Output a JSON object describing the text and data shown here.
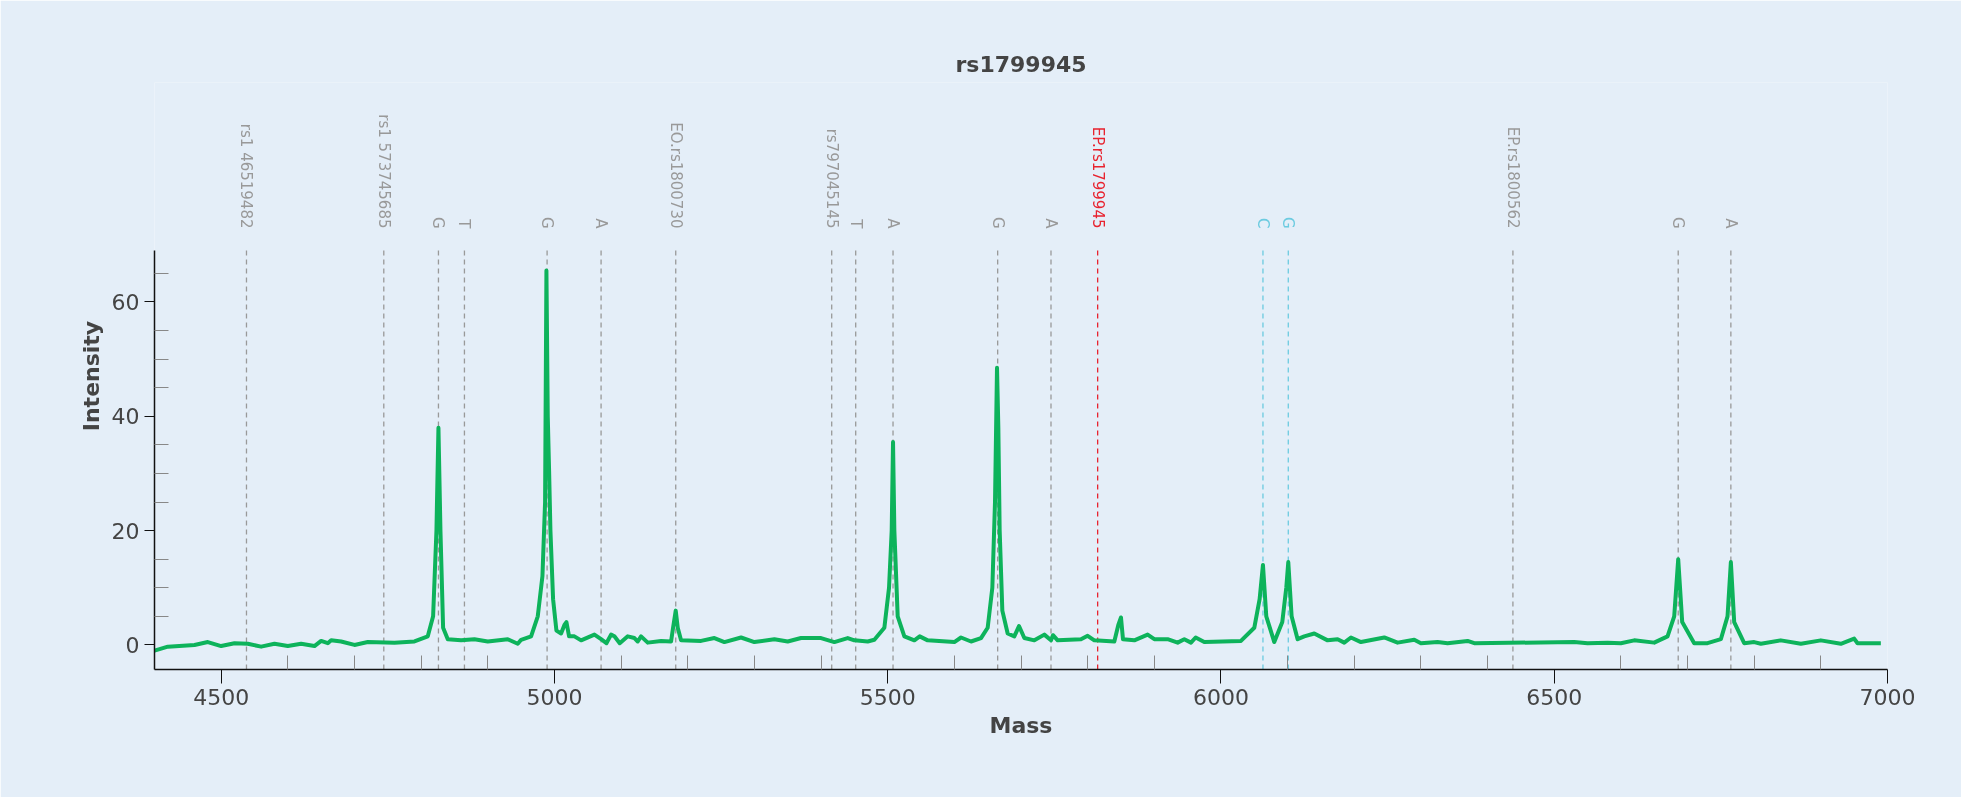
{
  "chart_data": {
    "type": "line",
    "title": "rs1799945",
    "xlabel": "Mass",
    "ylabel": "Intensity",
    "xlim": [
      4400,
      7000
    ],
    "ylim": [
      -4.3,
      69
    ],
    "xticks": [
      4500,
      5000,
      5500,
      6000,
      6500,
      7000,
      {
        "value": 4600,
        "label": null
      },
      {
        "value": 4700,
        "label": null
      },
      {
        "value": 4800,
        "label": null
      },
      {
        "value": 4900,
        "label": null
      },
      {
        "value": 5100,
        "label": null
      },
      {
        "value": 5200,
        "label": null
      },
      {
        "value": 5300,
        "label": null
      },
      {
        "value": 5400,
        "label": null
      },
      {
        "value": 5600,
        "label": null
      },
      {
        "value": 5700,
        "label": null
      },
      {
        "value": 5800,
        "label": null
      },
      {
        "value": 5900,
        "label": null
      },
      {
        "value": 6100,
        "label": null
      },
      {
        "value": 6200,
        "label": null
      },
      {
        "value": 6300,
        "label": null
      },
      {
        "value": 6400,
        "label": null
      },
      {
        "value": 6600,
        "label": null
      },
      {
        "value": 6700,
        "label": null
      },
      {
        "value": 6800,
        "label": null
      },
      {
        "value": 6900,
        "label": null
      }
    ],
    "yticks": [
      0,
      20,
      40,
      60,
      {
        "value": 5,
        "label": null
      },
      {
        "value": 10,
        "label": null
      },
      {
        "value": 15,
        "label": null
      },
      {
        "value": 25,
        "label": null
      },
      {
        "value": 30,
        "label": null
      },
      {
        "value": 35,
        "label": null
      },
      {
        "value": 45,
        "label": null
      },
      {
        "value": 50,
        "label": null
      },
      {
        "value": 55,
        "label": null
      },
      {
        "value": 65,
        "label": null
      }
    ],
    "grid": false,
    "marker": "none",
    "line_style": "solid",
    "series": [
      {
        "color": "#0db35b",
        "x": [
          4400,
          4420,
          4460,
          4480,
          4500,
          4520,
          4540,
          4560,
          4580,
          4600,
          4620,
          4640,
          4650,
          4660,
          4665,
          4680,
          4700,
          4720,
          4760,
          4790,
          4810,
          4818,
          4823,
          4826,
          4829,
          4833,
          4840,
          4860,
          4880,
          4900,
          4930,
          4945,
          4950,
          4965,
          4975,
          4982,
          4986,
          4988,
          4990,
          4992,
          4994,
          4998,
          5003,
          5010,
          5015,
          5018,
          5022,
          5030,
          5040,
          5060,
          5070,
          5078,
          5085,
          5090,
          5098,
          5110,
          5120,
          5125,
          5130,
          5140,
          5160,
          5175,
          5178,
          5182,
          5185,
          5190,
          5220,
          5240,
          5255,
          5280,
          5300,
          5330,
          5350,
          5370,
          5400,
          5420,
          5440,
          5450,
          5470,
          5480,
          5495,
          5502,
          5506,
          5508,
          5510,
          5515,
          5525,
          5540,
          5548,
          5560,
          5600,
          5610,
          5625,
          5640,
          5650,
          5657,
          5661,
          5664,
          5666,
          5668,
          5672,
          5680,
          5690,
          5697,
          5705,
          5720,
          5735,
          5745,
          5748,
          5755,
          5790,
          5800,
          5810,
          5840,
          5846,
          5850,
          5853,
          5870,
          5890,
          5900,
          5920,
          5935,
          5945,
          5955,
          5962,
          5975,
          6030,
          6050,
          6058,
          6063,
          6068,
          6080,
          6092,
          6098,
          6101,
          6106,
          6115,
          6125,
          6140,
          6160,
          6175,
          6185,
          6195,
          6210,
          6245,
          6265,
          6290,
          6300,
          6325,
          6340,
          6370,
          6380,
          6530,
          6550,
          6580,
          6600,
          6620,
          6650,
          6670,
          6680,
          6686,
          6692,
          6710,
          6730,
          6750,
          6760,
          6765,
          6770,
          6785,
          6800,
          6810,
          6840,
          6870,
          6900,
          6930,
          6950,
          6955,
          6990
        ],
        "values": [
          -1,
          -0.3,
          0,
          0.5,
          -0.2,
          0.3,
          0.2,
          -0.3,
          0.2,
          -0.2,
          0.2,
          -0.2,
          0.7,
          0.3,
          0.8,
          0.6,
          0,
          0.5,
          0.4,
          0.6,
          1.5,
          5,
          20,
          38,
          20,
          3,
          1,
          0.8,
          1.0,
          0.6,
          1.0,
          0.2,
          0.9,
          1.5,
          5,
          12,
          25,
          65.5,
          40,
          30.5,
          20,
          8,
          2.5,
          2,
          3.5,
          4,
          1.5,
          1.5,
          0.8,
          1.8,
          1,
          0.3,
          1.8,
          1.5,
          0.3,
          1.5,
          1.2,
          0.6,
          1.5,
          0.4,
          0.7,
          0.6,
          3,
          6,
          3,
          0.8,
          0.7,
          1.2,
          0.5,
          1.3,
          0.5,
          1,
          0.6,
          1.2,
          1.2,
          0.5,
          1.2,
          0.8,
          0.6,
          0.9,
          3,
          10,
          20,
          35.5,
          20,
          5,
          1.5,
          0.8,
          1.5,
          0.8,
          0.5,
          1.3,
          0.6,
          1.2,
          3,
          10,
          25,
          48.5,
          38,
          20,
          6,
          2,
          1.5,
          3.3,
          1.2,
          0.8,
          1.8,
          0.8,
          1.7,
          0.8,
          1.0,
          1.6,
          0.8,
          0.6,
          3.5,
          4.8,
          1,
          0.8,
          1.8,
          1.0,
          1.0,
          0.4,
          1.0,
          0.4,
          1.3,
          0.5,
          0.7,
          3,
          8,
          14,
          5,
          0.5,
          4,
          10,
          14.5,
          5,
          1,
          1.5,
          2,
          0.8,
          1,
          0.4,
          1.3,
          0.5,
          1.3,
          0.4,
          0.9,
          0.3,
          0.5,
          0.3,
          0.7,
          0.3,
          0.5,
          0.3,
          0.4,
          0.3,
          0.8,
          0.4,
          1.5,
          5,
          15,
          4,
          0.3,
          0.3,
          1,
          5,
          14.5,
          4,
          0.3,
          0.5,
          0.2,
          0.8,
          0.2,
          0.8,
          0.2,
          1.1,
          0.3,
          0.3
        ]
      }
    ],
    "ref_lines": [
      {
        "axis": "x",
        "value": 4538,
        "label": "rs1 46519482",
        "color": "#999999",
        "line_style": "dashed"
      },
      {
        "axis": "x",
        "value": 4744,
        "label": "rs1 573745685",
        "color": "#999999",
        "line_style": "dashed"
      },
      {
        "axis": "x",
        "value": 4826,
        "label": "G",
        "color": "#999999",
        "line_style": "dashed"
      },
      {
        "axis": "x",
        "value": 4865,
        "label": "T",
        "color": "#999999",
        "line_style": "dashed"
      },
      {
        "axis": "x",
        "value": 4989,
        "label": "G",
        "color": "#999999",
        "line_style": "dashed"
      },
      {
        "axis": "x",
        "value": 5070,
        "label": "A",
        "color": "#999999",
        "line_style": "dashed"
      },
      {
        "axis": "x",
        "value": 5182,
        "label": "EO.rs1800730",
        "color": "#999999",
        "line_style": "dashed"
      },
      {
        "axis": "x",
        "value": 5416,
        "label": "rs797045145",
        "color": "#999999",
        "line_style": "dashed"
      },
      {
        "axis": "x",
        "value": 5452,
        "label": "T",
        "color": "#999999",
        "line_style": "dashed"
      },
      {
        "axis": "x",
        "value": 5508,
        "label": "A",
        "color": "#999999",
        "line_style": "dashed"
      },
      {
        "axis": "x",
        "value": 5665,
        "label": "G",
        "color": "#999999",
        "line_style": "dashed"
      },
      {
        "axis": "x",
        "value": 5745,
        "label": "A",
        "color": "#999999",
        "line_style": "dashed"
      },
      {
        "axis": "x",
        "value": 5815,
        "label": "EP.rs1799945",
        "color": "#e8232f",
        "line_style": "dashed"
      },
      {
        "axis": "x",
        "value": 6063,
        "label": "C",
        "color": "#6ccbe0",
        "line_style": "dashed"
      },
      {
        "axis": "x",
        "value": 6101,
        "label": "G",
        "color": "#6ccbe0",
        "line_style": "dashed"
      },
      {
        "axis": "x",
        "value": 6438,
        "label": "EP.rs1800562",
        "color": "#999999",
        "line_style": "dashed"
      },
      {
        "axis": "x",
        "value": 6686,
        "label": "G",
        "color": "#999999",
        "line_style": "dashed"
      },
      {
        "axis": "x",
        "value": 6765,
        "label": "A",
        "color": "#999999",
        "line_style": "dashed"
      }
    ]
  }
}
